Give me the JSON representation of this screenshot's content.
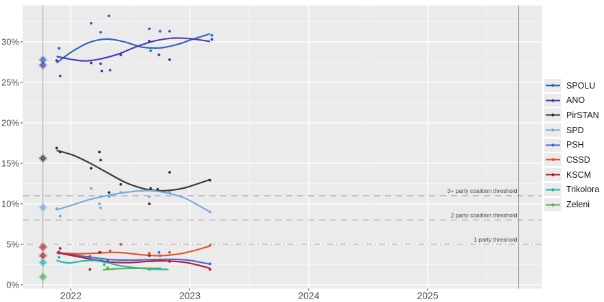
{
  "chart_data": {
    "type": "scatter",
    "title": "",
    "x_axis": {
      "tick_labels": [
        "2022",
        "2023",
        "2024",
        "2025"
      ],
      "tick_values": [
        2022,
        2023,
        2024,
        2025
      ],
      "range": [
        2021.59,
        2025.96
      ]
    },
    "y_axis": {
      "tick_labels": [
        "0%",
        "5%",
        "10%",
        "15%",
        "20%",
        "25%",
        "30%"
      ],
      "tick_values": [
        0,
        5,
        10,
        15,
        20,
        25,
        30
      ],
      "range": [
        -0.5,
        34.4
      ]
    },
    "grid": true,
    "legend_position": "right",
    "election_marker_dates": [
      2021.765,
      2025.765
    ],
    "thresholds": [
      {
        "label": "3+ party coalition threshold",
        "value": 11,
        "style": "dashed",
        "color": "#7f7f7f"
      },
      {
        "label": "2 party coalition threshold",
        "value": 8,
        "style": "dashed",
        "color": "#999999"
      },
      {
        "label": "1 party threshold",
        "value": 5,
        "style": "dashdot",
        "color": "#a6a6a6"
      }
    ],
    "series": [
      {
        "name": "SPOLU",
        "color": "#2164bb",
        "election_result": 27.79,
        "points": [
          [
            2021.9,
            29.2
          ],
          [
            2021.91,
            25.8
          ],
          [
            2022.17,
            32.3
          ],
          [
            2022.25,
            31.2
          ],
          [
            2022.32,
            33.2
          ],
          [
            2022.33,
            26.5
          ],
          [
            2022.42,
            28.4
          ],
          [
            2022.66,
            31.6
          ],
          [
            2022.67,
            28.9
          ],
          [
            2022.75,
            31.3
          ],
          [
            2022.83,
            31.3
          ],
          [
            2023.185,
            30.8
          ]
        ],
        "trend": [
          [
            2021.88,
            27.4
          ],
          [
            2022.0,
            28.7
          ],
          [
            2022.15,
            29.9
          ],
          [
            2022.3,
            30.35
          ],
          [
            2022.45,
            30.0
          ],
          [
            2022.6,
            29.35
          ],
          [
            2022.75,
            29.25
          ],
          [
            2022.9,
            29.7
          ],
          [
            2023.0,
            30.2
          ],
          [
            2023.17,
            31.0
          ]
        ]
      },
      {
        "name": "ANO",
        "color": "#4533ae",
        "election_result": 27.12,
        "points": [
          [
            2021.88,
            27.7
          ],
          [
            2022.17,
            27.4
          ],
          [
            2022.25,
            27.3
          ],
          [
            2022.26,
            26.4
          ],
          [
            2022.42,
            28.4
          ],
          [
            2022.66,
            30.1
          ],
          [
            2022.74,
            28.4
          ],
          [
            2022.83,
            27.8
          ],
          [
            2023.185,
            30.3
          ]
        ],
        "trend": [
          [
            2021.88,
            28.2
          ],
          [
            2022.0,
            27.85
          ],
          [
            2022.12,
            27.65
          ],
          [
            2022.25,
            27.9
          ],
          [
            2022.4,
            28.5
          ],
          [
            2022.55,
            29.4
          ],
          [
            2022.7,
            30.1
          ],
          [
            2022.85,
            30.45
          ],
          [
            2023.0,
            30.4
          ],
          [
            2023.17,
            30.05
          ]
        ]
      },
      {
        "name": "PirSTAN",
        "color": "#2f2f2f",
        "election_result": 15.62,
        "points": [
          [
            2021.88,
            16.9
          ],
          [
            2021.91,
            16.4
          ],
          [
            2022.17,
            14.4
          ],
          [
            2022.24,
            16.4
          ],
          [
            2022.25,
            15.4
          ],
          [
            2022.32,
            11.4
          ],
          [
            2022.42,
            12.4
          ],
          [
            2022.66,
            10.0
          ],
          [
            2022.67,
            11.9
          ],
          [
            2022.73,
            11.8
          ],
          [
            2022.83,
            13.9
          ],
          [
            2023.17,
            12.9
          ]
        ],
        "trend": [
          [
            2021.88,
            16.6
          ],
          [
            2022.02,
            16.0
          ],
          [
            2022.15,
            15.1
          ],
          [
            2022.3,
            13.9
          ],
          [
            2022.45,
            12.7
          ],
          [
            2022.58,
            12.0
          ],
          [
            2022.7,
            11.65
          ],
          [
            2022.82,
            11.65
          ],
          [
            2022.95,
            11.95
          ],
          [
            2023.05,
            12.4
          ],
          [
            2023.17,
            13.0
          ]
        ]
      },
      {
        "name": "SPD",
        "color": "#6fa8dc",
        "election_result": 9.56,
        "points": [
          [
            2021.88,
            9.4
          ],
          [
            2021.91,
            8.5
          ],
          [
            2022.17,
            11.9
          ],
          [
            2022.24,
            10.0
          ],
          [
            2022.25,
            9.5
          ],
          [
            2022.32,
            10.9
          ],
          [
            2022.42,
            11.4
          ],
          [
            2022.66,
            10.9
          ],
          [
            2022.83,
            11.4
          ],
          [
            2023.17,
            9.0
          ]
        ],
        "trend": [
          [
            2021.88,
            9.25
          ],
          [
            2022.02,
            9.9
          ],
          [
            2022.15,
            10.5
          ],
          [
            2022.3,
            11.0
          ],
          [
            2022.45,
            11.4
          ],
          [
            2022.58,
            11.6
          ],
          [
            2022.7,
            11.6
          ],
          [
            2022.82,
            11.3
          ],
          [
            2022.95,
            10.75
          ],
          [
            2023.05,
            10.0
          ],
          [
            2023.17,
            9.0
          ]
        ]
      },
      {
        "name": "PSH",
        "color": "#4a5cd8",
        "election_result": 4.68,
        "points": [
          [
            2021.9,
            4.1
          ],
          [
            2022.16,
            3.5
          ],
          [
            2022.31,
            3.0
          ],
          [
            2022.74,
            4.0
          ],
          [
            2023.17,
            2.6
          ]
        ],
        "trend": [
          [
            2021.88,
            4.0
          ],
          [
            2022.05,
            3.65
          ],
          [
            2022.2,
            3.35
          ],
          [
            2022.35,
            3.1
          ],
          [
            2022.5,
            3.05
          ],
          [
            2022.65,
            3.1
          ],
          [
            2022.8,
            3.15
          ],
          [
            2022.95,
            3.1
          ],
          [
            2023.05,
            2.9
          ],
          [
            2023.17,
            2.55
          ]
        ]
      },
      {
        "name": "CSSD",
        "color": "#e54b1e",
        "election_result": 4.65,
        "points": [
          [
            2021.9,
            3.9
          ],
          [
            2022.25,
            4.0
          ],
          [
            2022.33,
            4.2
          ],
          [
            2022.42,
            5.0
          ],
          [
            2022.66,
            3.9
          ],
          [
            2022.75,
            3.6
          ],
          [
            2022.83,
            4.0
          ],
          [
            2023.17,
            4.9
          ]
        ],
        "trend": [
          [
            2021.88,
            3.95
          ],
          [
            2022.05,
            3.85
          ],
          [
            2022.2,
            3.9
          ],
          [
            2022.33,
            4.0
          ],
          [
            2022.45,
            3.95
          ],
          [
            2022.6,
            3.7
          ],
          [
            2022.75,
            3.6
          ],
          [
            2022.9,
            3.8
          ],
          [
            2023.03,
            4.2
          ],
          [
            2023.17,
            4.8
          ]
        ]
      },
      {
        "name": "KSCM",
        "color": "#a51d2a",
        "election_result": 3.6,
        "points": [
          [
            2021.91,
            4.5
          ],
          [
            2022.16,
            1.9
          ],
          [
            2022.24,
            4.0
          ],
          [
            2022.66,
            3.6
          ],
          [
            2022.83,
            2.9
          ],
          [
            2023.17,
            1.9
          ]
        ],
        "trend": [
          [
            2021.88,
            4.0
          ],
          [
            2022.05,
            3.5
          ],
          [
            2022.2,
            3.1
          ],
          [
            2022.35,
            2.8
          ],
          [
            2022.5,
            2.75
          ],
          [
            2022.65,
            2.9
          ],
          [
            2022.8,
            2.95
          ],
          [
            2022.95,
            2.8
          ],
          [
            2023.05,
            2.5
          ],
          [
            2023.17,
            2.05
          ]
        ]
      },
      {
        "name": "Trikolora",
        "color": "#16b5ae",
        "election_result": 2.76,
        "points": [
          [
            2021.9,
            3.4
          ],
          [
            2022.25,
            3.2
          ],
          [
            2022.28,
            2.5
          ],
          [
            2022.66,
            1.9
          ]
        ],
        "trend": [
          [
            2021.88,
            3.0
          ],
          [
            2021.98,
            2.7
          ],
          [
            2022.1,
            2.95
          ],
          [
            2022.2,
            3.0
          ],
          [
            2022.3,
            2.75
          ],
          [
            2022.42,
            2.35
          ],
          [
            2022.55,
            2.1
          ],
          [
            2022.68,
            1.95
          ],
          [
            2022.82,
            1.9
          ]
        ]
      },
      {
        "name": "Zeleni",
        "color": "#4cb04a",
        "election_result": 0.99,
        "points": [
          [
            2022.31,
            2.1
          ],
          [
            2022.67,
            2.0
          ]
        ],
        "trend": [
          [
            2022.27,
            1.85
          ],
          [
            2022.4,
            2.0
          ],
          [
            2022.55,
            2.05
          ],
          [
            2022.66,
            2.05
          ],
          [
            2022.76,
            2.05
          ]
        ]
      }
    ]
  }
}
